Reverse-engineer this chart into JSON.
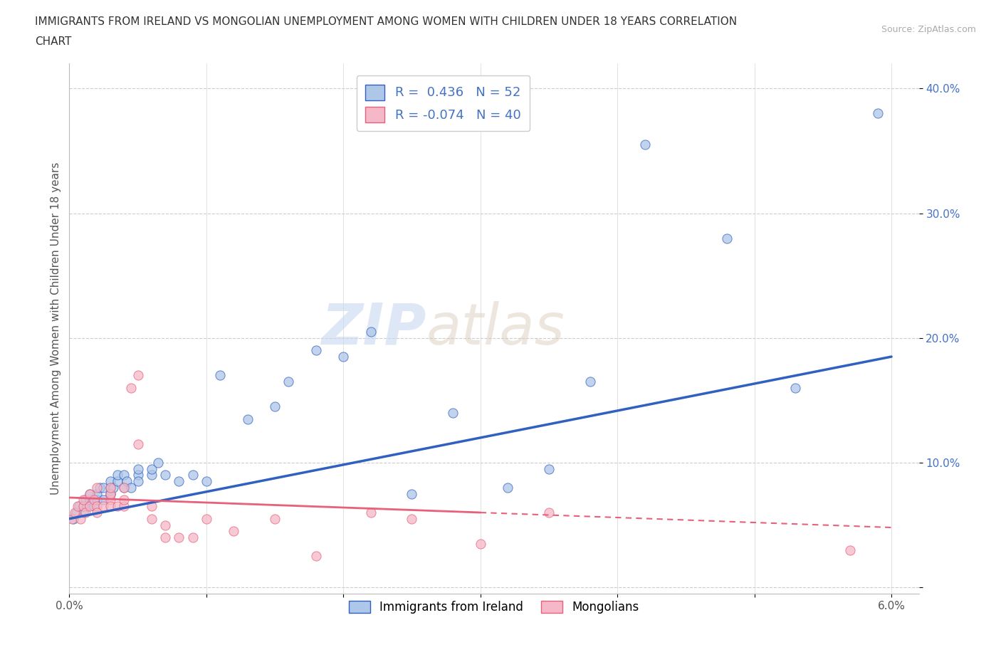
{
  "title_line1": "IMMIGRANTS FROM IRELAND VS MONGOLIAN UNEMPLOYMENT AMONG WOMEN WITH CHILDREN UNDER 18 YEARS CORRELATION",
  "title_line2": "CHART",
  "source": "Source: ZipAtlas.com",
  "ylabel": "Unemployment Among Women with Children Under 18 years",
  "xlim": [
    0.0,
    0.062
  ],
  "ylim": [
    -0.005,
    0.42
  ],
  "yticks": [
    0.0,
    0.1,
    0.2,
    0.3,
    0.4
  ],
  "ytick_labels": [
    "",
    "10.0%",
    "20.0%",
    "30.0%",
    "40.0%"
  ],
  "xticks": [
    0.0,
    0.01,
    0.02,
    0.03,
    0.04,
    0.05,
    0.06
  ],
  "xtick_labels": [
    "0.0%",
    "",
    "",
    "",
    "",
    "",
    "6.0%"
  ],
  "r_ireland": 0.436,
  "n_ireland": 52,
  "r_mongolian": -0.074,
  "n_mongolian": 40,
  "ireland_color": "#aec6e8",
  "mongolian_color": "#f4b8c8",
  "ireland_line_color": "#3060c0",
  "mongolian_line_color": "#e8607a",
  "watermark_zip": "ZIP",
  "watermark_atlas": "atlas",
  "background_color": "#ffffff",
  "grid_color": "#cccccc",
  "ireland_scatter_x": [
    0.0003,
    0.0005,
    0.0007,
    0.001,
    0.001,
    0.0012,
    0.0013,
    0.0015,
    0.0015,
    0.0018,
    0.002,
    0.002,
    0.0022,
    0.0025,
    0.0025,
    0.003,
    0.003,
    0.003,
    0.003,
    0.0032,
    0.0035,
    0.0035,
    0.004,
    0.004,
    0.0042,
    0.0045,
    0.005,
    0.005,
    0.005,
    0.006,
    0.006,
    0.0065,
    0.007,
    0.008,
    0.009,
    0.01,
    0.011,
    0.013,
    0.015,
    0.016,
    0.018,
    0.02,
    0.022,
    0.025,
    0.028,
    0.032,
    0.035,
    0.038,
    0.042,
    0.048,
    0.053,
    0.059
  ],
  "ireland_scatter_y": [
    0.055,
    0.06,
    0.065,
    0.06,
    0.065,
    0.07,
    0.065,
    0.07,
    0.075,
    0.065,
    0.07,
    0.075,
    0.08,
    0.07,
    0.08,
    0.075,
    0.08,
    0.085,
    0.075,
    0.08,
    0.085,
    0.09,
    0.08,
    0.09,
    0.085,
    0.08,
    0.09,
    0.085,
    0.095,
    0.09,
    0.095,
    0.1,
    0.09,
    0.085,
    0.09,
    0.085,
    0.17,
    0.135,
    0.145,
    0.165,
    0.19,
    0.185,
    0.205,
    0.075,
    0.14,
    0.08,
    0.095,
    0.165,
    0.355,
    0.28,
    0.16,
    0.38
  ],
  "mongolian_scatter_x": [
    0.0002,
    0.0004,
    0.0006,
    0.0008,
    0.001,
    0.001,
    0.0012,
    0.0015,
    0.0015,
    0.0018,
    0.002,
    0.002,
    0.002,
    0.0025,
    0.003,
    0.003,
    0.003,
    0.003,
    0.0035,
    0.004,
    0.004,
    0.004,
    0.0045,
    0.005,
    0.005,
    0.006,
    0.006,
    0.007,
    0.007,
    0.008,
    0.009,
    0.01,
    0.012,
    0.015,
    0.018,
    0.022,
    0.025,
    0.03,
    0.035,
    0.057
  ],
  "mongolian_scatter_y": [
    0.055,
    0.06,
    0.065,
    0.055,
    0.065,
    0.07,
    0.06,
    0.065,
    0.075,
    0.07,
    0.065,
    0.08,
    0.06,
    0.065,
    0.07,
    0.075,
    0.08,
    0.065,
    0.065,
    0.065,
    0.08,
    0.07,
    0.16,
    0.17,
    0.115,
    0.065,
    0.055,
    0.04,
    0.05,
    0.04,
    0.04,
    0.055,
    0.045,
    0.055,
    0.025,
    0.06,
    0.055,
    0.035,
    0.06,
    0.03
  ],
  "ireland_trend_x0": 0.0,
  "ireland_trend_y0": 0.055,
  "ireland_trend_x1": 0.06,
  "ireland_trend_y1": 0.185,
  "mongolian_trend_x0": 0.0,
  "mongolian_trend_y0": 0.072,
  "mongolian_trend_x1": 0.06,
  "mongolian_trend_y1": 0.048
}
